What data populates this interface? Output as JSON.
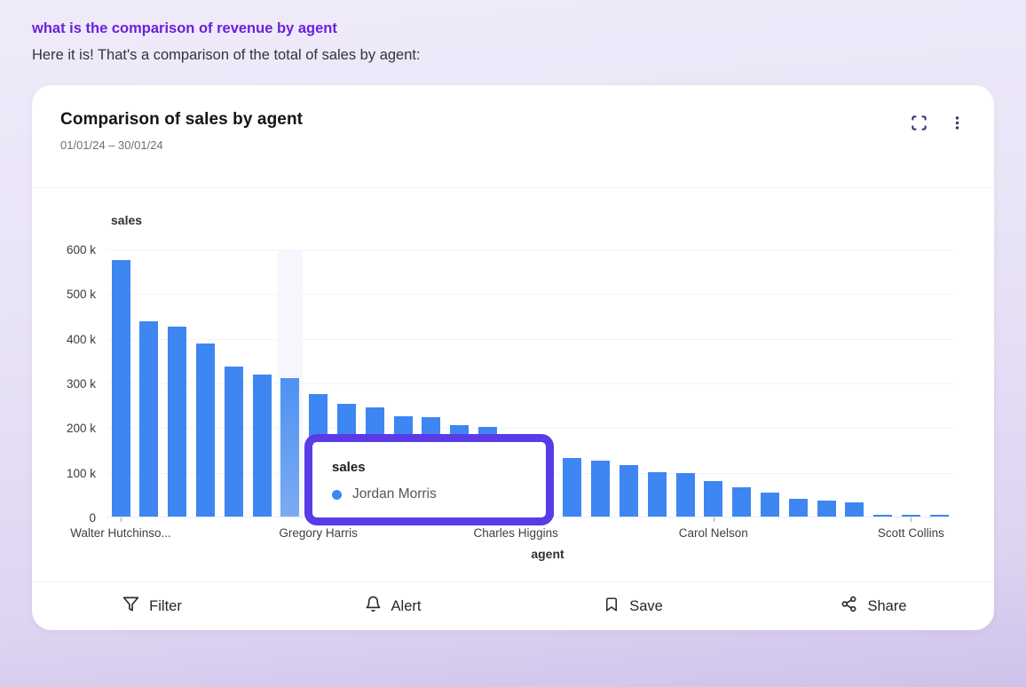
{
  "conversation": {
    "question": "what is the comparison of revenue by agent",
    "answer": "Here it is! That's a comparison of the total of sales by agent:",
    "question_color": "#6B21D8"
  },
  "card": {
    "title": "Comparison of sales by agent",
    "date_range": "01/01/24 – 30/01/24",
    "header_icons": [
      "expand-icon",
      "kebab-menu-icon"
    ]
  },
  "chart_data": {
    "type": "bar",
    "title": "Comparison of sales by agent",
    "xlabel": "agent",
    "ylabel": "sales",
    "ylim_k": [
      0,
      600
    ],
    "grid": true,
    "bar_color": "#3E86F2",
    "highlight_band_color": "#F5F7FC",
    "values_k": [
      575,
      438,
      426,
      388,
      335,
      317,
      310,
      275,
      253,
      244,
      225,
      222,
      205,
      200,
      180,
      155,
      132,
      125,
      115,
      100,
      97,
      79,
      66,
      54,
      39,
      35,
      32,
      4,
      2,
      1
    ],
    "y_ticks": [
      {
        "label": "600 k",
        "k": 600
      },
      {
        "label": "500 k",
        "k": 500
      },
      {
        "label": "400 k",
        "k": 400
      },
      {
        "label": "300 k",
        "k": 300
      },
      {
        "label": "200 k",
        "k": 200
      },
      {
        "label": "100 k",
        "k": 100
      },
      {
        "label": "0",
        "k": 0
      }
    ],
    "x_axis_labels": [
      {
        "index": 0,
        "label": "Walter Hutchinso..."
      },
      {
        "index": 7,
        "label": "Gregory Harris"
      },
      {
        "index": 14,
        "label": "Charles Higgins"
      },
      {
        "index": 21,
        "label": "Carol Nelson"
      },
      {
        "index": 28,
        "label": "Scott Collins"
      }
    ],
    "highlight": {
      "index": 6,
      "agent": "Jordan Morris"
    }
  },
  "tooltip": {
    "title": "sales",
    "series_label": "Jordan Morris",
    "dot_color": "#3F86F2",
    "border_color": "#5B3BE8"
  },
  "footer": {
    "actions": [
      {
        "label": "Filter",
        "icon": "filter-icon"
      },
      {
        "label": "Alert",
        "icon": "bell-icon"
      },
      {
        "label": "Save",
        "icon": "bookmark-icon"
      },
      {
        "label": "Share",
        "icon": "share-icon"
      }
    ]
  }
}
